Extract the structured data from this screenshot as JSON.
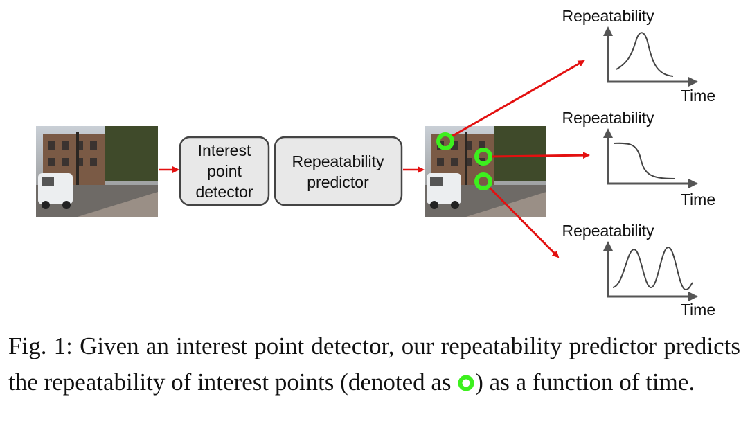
{
  "boxes": [
    {
      "lines": [
        "Interest",
        "point",
        "detector"
      ]
    },
    {
      "lines": [
        "Repeatability",
        "predictor"
      ]
    }
  ],
  "plots": [
    {
      "y_label": "Repeatability",
      "x_label": "Time"
    },
    {
      "y_label": "Repeatability",
      "x_label": "Time"
    },
    {
      "y_label": "Repeatability",
      "x_label": "Time"
    }
  ],
  "caption": {
    "text_before": "Fig. 1: Given an interest point detector, our repeatability predictor predicts the repeatability of interest points (denoted as",
    "text_after": ") as a function of time."
  }
}
